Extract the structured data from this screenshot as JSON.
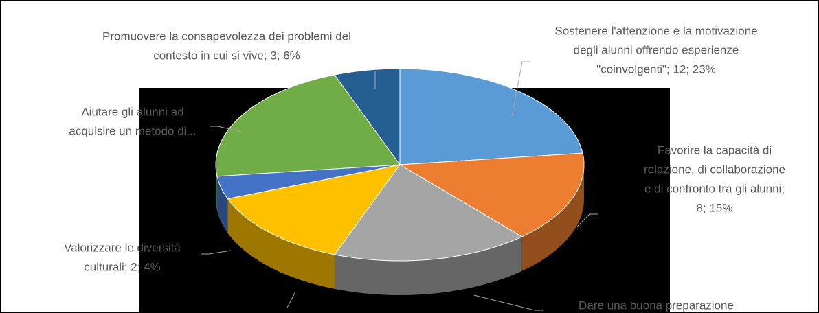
{
  "chart_data": {
    "type": "pie3d",
    "labels": [
      [
        "Sostenere l'attenzione e la motivazione",
        "degli alunni offrendo esperienze",
        "\"coinvolgenti\"; 12; 23%"
      ],
      [
        "Favorire la capacità di",
        "relazione, di collaborazione",
        "e di confronto tra gli alunni;",
        "8; 15%"
      ],
      [
        "Dare una buona preparazione"
      ],
      null,
      [
        "Valorizzare le diversità",
        "culturali; 2; 4%"
      ],
      [
        "Aiutare gli alunni ad",
        "acquisire un metodo di..."
      ],
      [
        "Promuovere la consapevolezza dei problemi del",
        "contesto in cui si vive; 3; 6%"
      ]
    ],
    "values": [
      12,
      8,
      9,
      7,
      2,
      11,
      3
    ],
    "colors": [
      "#5b9bd5",
      "#ed7d31",
      "#a5a5a5",
      "#ffc000",
      "#4472c4",
      "#70ad47",
      "#255e91"
    ]
  }
}
